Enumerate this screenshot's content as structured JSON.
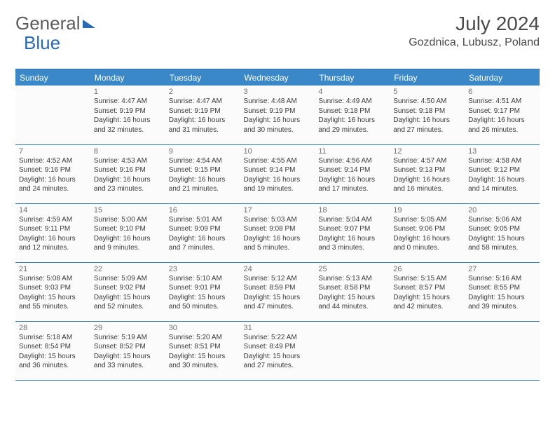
{
  "logo": {
    "part1": "General",
    "part2": "Blue"
  },
  "title": "July 2024",
  "location": "Gozdnica, Lubusz, Poland",
  "colors": {
    "header_bg": "#3b88c9",
    "header_text": "#ffffff",
    "border": "#3b7fbf",
    "cell_bg": "#fbfbfb",
    "text": "#3a3a3a",
    "daynum": "#707070",
    "logo_gray": "#5c5c5c",
    "logo_blue": "#2a6ab0"
  },
  "fonts": {
    "title_size": 28,
    "location_size": 16,
    "header_size": 12,
    "body_size": 10
  },
  "weekdays": [
    "Sunday",
    "Monday",
    "Tuesday",
    "Wednesday",
    "Thursday",
    "Friday",
    "Saturday"
  ],
  "start_offset": 1,
  "days": [
    {
      "n": "1",
      "sr": "4:47 AM",
      "ss": "9:19 PM",
      "dl1": "16 hours",
      "dl2": "and 32 minutes."
    },
    {
      "n": "2",
      "sr": "4:47 AM",
      "ss": "9:19 PM",
      "dl1": "16 hours",
      "dl2": "and 31 minutes."
    },
    {
      "n": "3",
      "sr": "4:48 AM",
      "ss": "9:19 PM",
      "dl1": "16 hours",
      "dl2": "and 30 minutes."
    },
    {
      "n": "4",
      "sr": "4:49 AM",
      "ss": "9:18 PM",
      "dl1": "16 hours",
      "dl2": "and 29 minutes."
    },
    {
      "n": "5",
      "sr": "4:50 AM",
      "ss": "9:18 PM",
      "dl1": "16 hours",
      "dl2": "and 27 minutes."
    },
    {
      "n": "6",
      "sr": "4:51 AM",
      "ss": "9:17 PM",
      "dl1": "16 hours",
      "dl2": "and 26 minutes."
    },
    {
      "n": "7",
      "sr": "4:52 AM",
      "ss": "9:16 PM",
      "dl1": "16 hours",
      "dl2": "and 24 minutes."
    },
    {
      "n": "8",
      "sr": "4:53 AM",
      "ss": "9:16 PM",
      "dl1": "16 hours",
      "dl2": "and 23 minutes."
    },
    {
      "n": "9",
      "sr": "4:54 AM",
      "ss": "9:15 PM",
      "dl1": "16 hours",
      "dl2": "and 21 minutes."
    },
    {
      "n": "10",
      "sr": "4:55 AM",
      "ss": "9:14 PM",
      "dl1": "16 hours",
      "dl2": "and 19 minutes."
    },
    {
      "n": "11",
      "sr": "4:56 AM",
      "ss": "9:14 PM",
      "dl1": "16 hours",
      "dl2": "and 17 minutes."
    },
    {
      "n": "12",
      "sr": "4:57 AM",
      "ss": "9:13 PM",
      "dl1": "16 hours",
      "dl2": "and 16 minutes."
    },
    {
      "n": "13",
      "sr": "4:58 AM",
      "ss": "9:12 PM",
      "dl1": "16 hours",
      "dl2": "and 14 minutes."
    },
    {
      "n": "14",
      "sr": "4:59 AM",
      "ss": "9:11 PM",
      "dl1": "16 hours",
      "dl2": "and 12 minutes."
    },
    {
      "n": "15",
      "sr": "5:00 AM",
      "ss": "9:10 PM",
      "dl1": "16 hours",
      "dl2": "and 9 minutes."
    },
    {
      "n": "16",
      "sr": "5:01 AM",
      "ss": "9:09 PM",
      "dl1": "16 hours",
      "dl2": "and 7 minutes."
    },
    {
      "n": "17",
      "sr": "5:03 AM",
      "ss": "9:08 PM",
      "dl1": "16 hours",
      "dl2": "and 5 minutes."
    },
    {
      "n": "18",
      "sr": "5:04 AM",
      "ss": "9:07 PM",
      "dl1": "16 hours",
      "dl2": "and 3 minutes."
    },
    {
      "n": "19",
      "sr": "5:05 AM",
      "ss": "9:06 PM",
      "dl1": "16 hours",
      "dl2": "and 0 minutes."
    },
    {
      "n": "20",
      "sr": "5:06 AM",
      "ss": "9:05 PM",
      "dl1": "15 hours",
      "dl2": "and 58 minutes."
    },
    {
      "n": "21",
      "sr": "5:08 AM",
      "ss": "9:03 PM",
      "dl1": "15 hours",
      "dl2": "and 55 minutes."
    },
    {
      "n": "22",
      "sr": "5:09 AM",
      "ss": "9:02 PM",
      "dl1": "15 hours",
      "dl2": "and 52 minutes."
    },
    {
      "n": "23",
      "sr": "5:10 AM",
      "ss": "9:01 PM",
      "dl1": "15 hours",
      "dl2": "and 50 minutes."
    },
    {
      "n": "24",
      "sr": "5:12 AM",
      "ss": "8:59 PM",
      "dl1": "15 hours",
      "dl2": "and 47 minutes."
    },
    {
      "n": "25",
      "sr": "5:13 AM",
      "ss": "8:58 PM",
      "dl1": "15 hours",
      "dl2": "and 44 minutes."
    },
    {
      "n": "26",
      "sr": "5:15 AM",
      "ss": "8:57 PM",
      "dl1": "15 hours",
      "dl2": "and 42 minutes."
    },
    {
      "n": "27",
      "sr": "5:16 AM",
      "ss": "8:55 PM",
      "dl1": "15 hours",
      "dl2": "and 39 minutes."
    },
    {
      "n": "28",
      "sr": "5:18 AM",
      "ss": "8:54 PM",
      "dl1": "15 hours",
      "dl2": "and 36 minutes."
    },
    {
      "n": "29",
      "sr": "5:19 AM",
      "ss": "8:52 PM",
      "dl1": "15 hours",
      "dl2": "and 33 minutes."
    },
    {
      "n": "30",
      "sr": "5:20 AM",
      "ss": "8:51 PM",
      "dl1": "15 hours",
      "dl2": "and 30 minutes."
    },
    {
      "n": "31",
      "sr": "5:22 AM",
      "ss": "8:49 PM",
      "dl1": "15 hours",
      "dl2": "and 27 minutes."
    }
  ],
  "labels": {
    "sunrise": "Sunrise:",
    "sunset": "Sunset:",
    "daylight": "Daylight:"
  }
}
